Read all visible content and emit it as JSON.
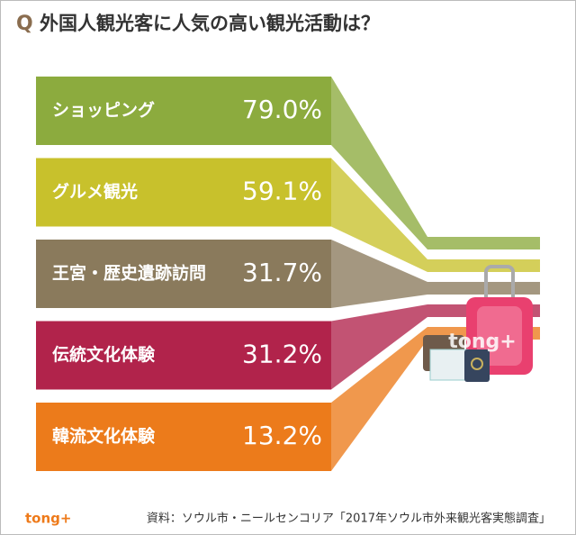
{
  "chart_data": {
    "type": "bar",
    "title_marker": "Q",
    "title": "外国人観光客に人気の高い観光活動は？",
    "categories": [
      "ショッピング",
      "グルメ観光",
      "王宮・歴史遺跡訪問",
      "伝統文化体験",
      "韓流文化体験"
    ],
    "values": [
      79.0,
      59.1,
      31.7,
      31.2,
      13.2
    ],
    "value_labels": [
      "79.0%",
      "59.1%",
      "31.7%",
      "31.2%",
      "13.2%"
    ],
    "colors": [
      "#8cab3e",
      "#c8c12c",
      "#8a7a5c",
      "#b1234b",
      "#ec7b1b"
    ],
    "source": "資料：ソウル市・ニールセンコリア「2017年ソウル市外来観光客実態調査」",
    "logo": "tong+"
  }
}
